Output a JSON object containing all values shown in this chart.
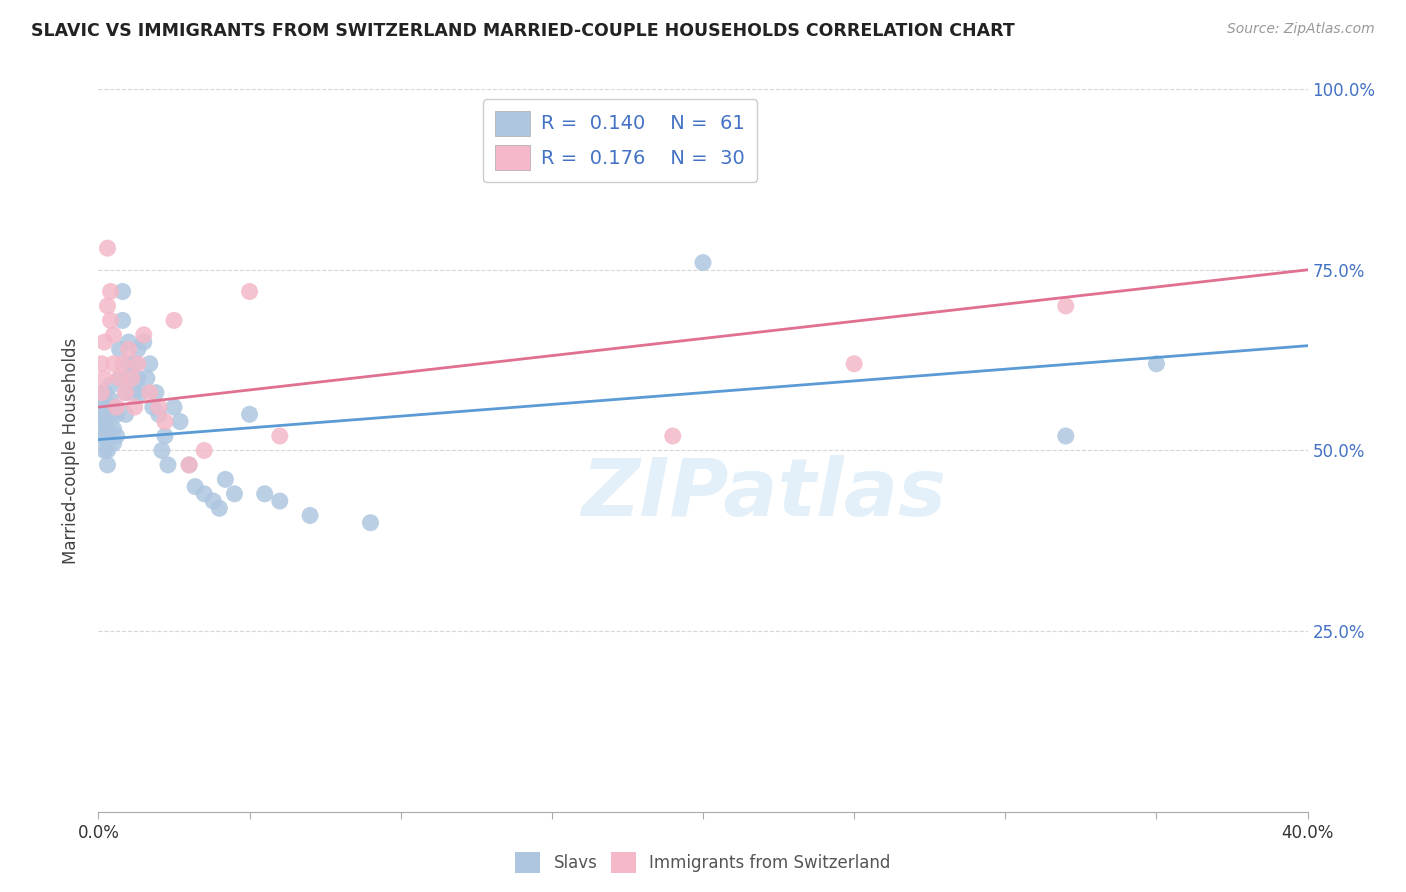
{
  "title": "SLAVIC VS IMMIGRANTS FROM SWITZERLAND MARRIED-COUPLE HOUSEHOLDS CORRELATION CHART",
  "source": "Source: ZipAtlas.com",
  "ylabel_label": "Married-couple Households",
  "x_min": 0.0,
  "x_max": 0.4,
  "y_min": 0.0,
  "y_max": 1.0,
  "x_ticks": [
    0.0,
    0.05,
    0.1,
    0.15,
    0.2,
    0.25,
    0.3,
    0.35,
    0.4
  ],
  "x_tick_labels": [
    "0.0%",
    "",
    "",
    "",
    "",
    "",
    "",
    "",
    "40.0%"
  ],
  "y_ticks": [
    0.0,
    0.25,
    0.5,
    0.75,
    1.0
  ],
  "y_tick_labels": [
    "",
    "25.0%",
    "50.0%",
    "75.0%",
    "100.0%"
  ],
  "slavs_color": "#aec6e0",
  "swiss_color": "#f4b8c8",
  "slavs_line_color": "#5b9bd5",
  "swiss_line_color": "#e07090",
  "R_slavs": 0.14,
  "N_slavs": 61,
  "R_swiss": 0.176,
  "N_swiss": 30,
  "watermark": "ZIPatlas",
  "slavs_x": [
    0.001,
    0.001,
    0.001,
    0.001,
    0.001,
    0.002,
    0.002,
    0.002,
    0.002,
    0.002,
    0.003,
    0.003,
    0.003,
    0.004,
    0.004,
    0.004,
    0.005,
    0.005,
    0.005,
    0.006,
    0.006,
    0.007,
    0.007,
    0.008,
    0.008,
    0.009,
    0.009,
    0.01,
    0.01,
    0.011,
    0.012,
    0.012,
    0.013,
    0.013,
    0.014,
    0.015,
    0.016,
    0.017,
    0.018,
    0.019,
    0.02,
    0.021,
    0.022,
    0.023,
    0.025,
    0.027,
    0.03,
    0.032,
    0.035,
    0.038,
    0.04,
    0.042,
    0.045,
    0.05,
    0.055,
    0.06,
    0.07,
    0.09,
    0.2,
    0.32,
    0.35
  ],
  "slavs_y": [
    0.52,
    0.54,
    0.55,
    0.57,
    0.58,
    0.5,
    0.52,
    0.54,
    0.56,
    0.58,
    0.48,
    0.5,
    0.53,
    0.55,
    0.57,
    0.59,
    0.51,
    0.53,
    0.56,
    0.52,
    0.55,
    0.6,
    0.64,
    0.68,
    0.72,
    0.55,
    0.58,
    0.62,
    0.65,
    0.6,
    0.58,
    0.62,
    0.6,
    0.64,
    0.58,
    0.65,
    0.6,
    0.62,
    0.56,
    0.58,
    0.55,
    0.5,
    0.52,
    0.48,
    0.56,
    0.54,
    0.48,
    0.45,
    0.44,
    0.43,
    0.42,
    0.46,
    0.44,
    0.55,
    0.44,
    0.43,
    0.41,
    0.4,
    0.76,
    0.52,
    0.62
  ],
  "swiss_x": [
    0.001,
    0.001,
    0.002,
    0.002,
    0.003,
    0.003,
    0.004,
    0.004,
    0.005,
    0.005,
    0.006,
    0.007,
    0.008,
    0.009,
    0.01,
    0.011,
    0.012,
    0.013,
    0.015,
    0.017,
    0.02,
    0.022,
    0.025,
    0.03,
    0.035,
    0.05,
    0.06,
    0.19,
    0.25,
    0.32
  ],
  "swiss_y": [
    0.58,
    0.62,
    0.6,
    0.65,
    0.7,
    0.78,
    0.72,
    0.68,
    0.66,
    0.62,
    0.56,
    0.6,
    0.62,
    0.58,
    0.64,
    0.6,
    0.56,
    0.62,
    0.66,
    0.58,
    0.56,
    0.54,
    0.68,
    0.48,
    0.5,
    0.72,
    0.52,
    0.52,
    0.62,
    0.7
  ],
  "slavs_line_y0": 0.515,
  "slavs_line_y1": 0.645,
  "swiss_line_y0": 0.56,
  "swiss_line_y1": 0.75
}
